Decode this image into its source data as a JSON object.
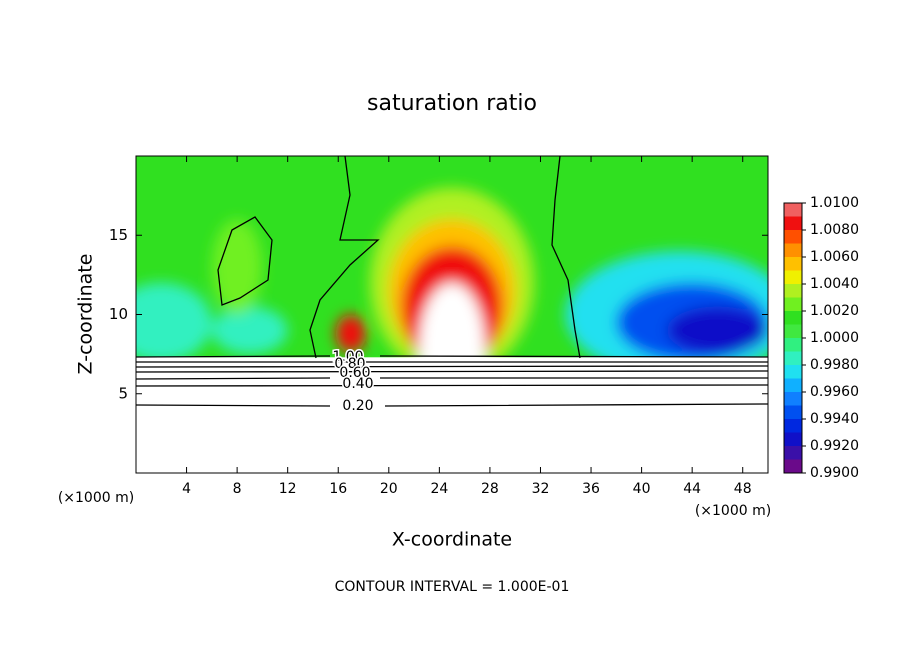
{
  "chart_data": {
    "type": "contour",
    "title": "saturation ratio",
    "x_label": "X-coordinate",
    "y_label": "Z-coordinate",
    "x_unit": "(×1000 m)",
    "footer": "CONTOUR INTERVAL = 1.000E-01",
    "xlim": [
      0,
      50
    ],
    "ylim": [
      0,
      20
    ],
    "xticks": [
      4,
      8,
      12,
      16,
      20,
      24,
      28,
      32,
      36,
      40,
      44,
      48
    ],
    "yticks": [
      5,
      10,
      15
    ],
    "contour_labels": [
      "1.00",
      "0.80",
      "0.60",
      "0.40",
      "0.20"
    ],
    "colorbar": {
      "lim": [
        0.99,
        1.01
      ],
      "ticks": [
        {
          "value": 0.99,
          "label": "0.9900"
        },
        {
          "value": 0.992,
          "label": "0.9920"
        },
        {
          "value": 0.994,
          "label": "0.9940"
        },
        {
          "value": 0.996,
          "label": "0.9960"
        },
        {
          "value": 0.998,
          "label": "0.9980"
        },
        {
          "value": 1.0,
          "label": "1.0000"
        },
        {
          "value": 1.002,
          "label": "1.0020"
        },
        {
          "value": 1.004,
          "label": "1.0040"
        },
        {
          "value": 1.006,
          "label": "1.0060"
        },
        {
          "value": 1.008,
          "label": "1.0080"
        },
        {
          "value": 1.01,
          "label": "1.0100"
        }
      ],
      "levels": [
        0.99,
        0.991,
        0.992,
        0.993,
        0.994,
        0.995,
        0.996,
        0.997,
        0.998,
        0.999,
        1.0,
        1.001,
        1.002,
        1.003,
        1.004,
        1.005,
        1.006,
        1.007,
        1.008,
        1.009,
        1.01
      ],
      "colors": [
        "#6a0a8a",
        "#3a10a8",
        "#1010c8",
        "#0028e0",
        "#0050f0",
        "#1080ff",
        "#10b0ff",
        "#20e0f0",
        "#30f0c0",
        "#30f080",
        "#40e840",
        "#30e020",
        "#70f020",
        "#b0f020",
        "#f0f000",
        "#ffc000",
        "#ff9000",
        "#ff5000",
        "#f01010",
        "#f06060"
      ]
    }
  }
}
